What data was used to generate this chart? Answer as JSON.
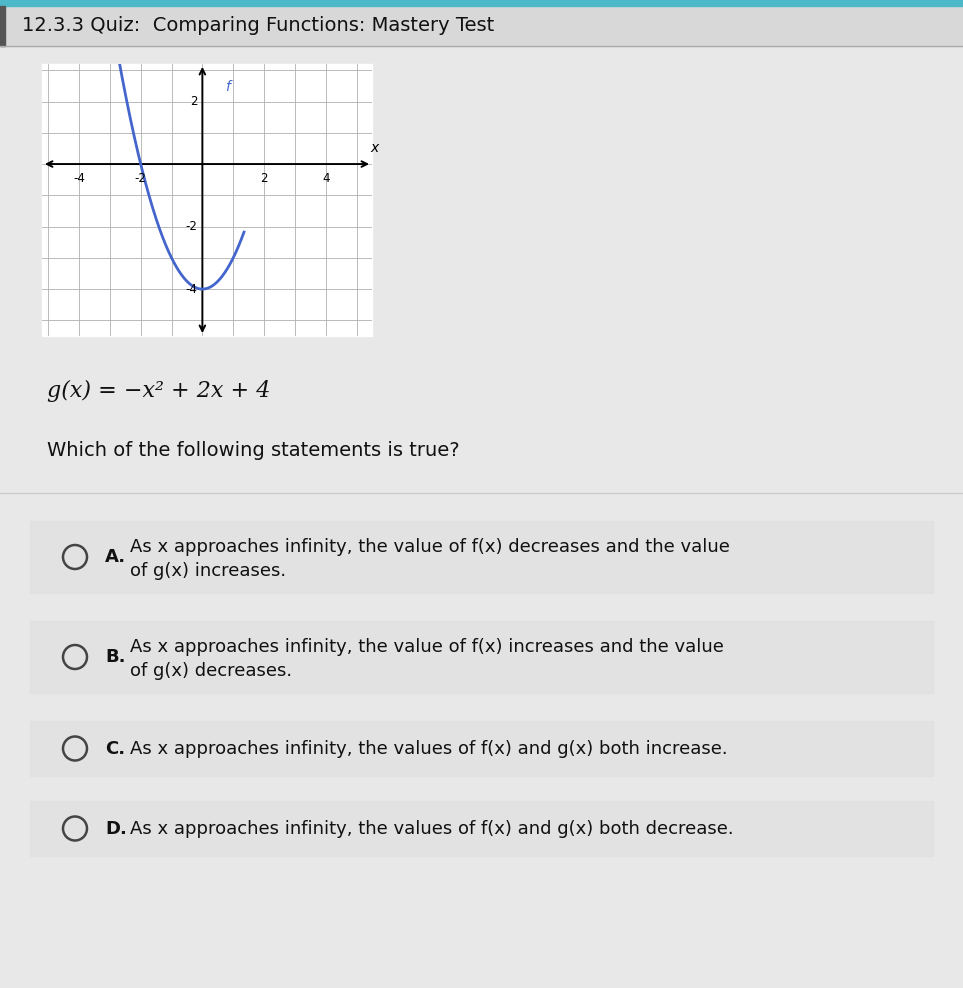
{
  "title": "12.3.3 Quiz:  Comparing Functions: Mastery Test",
  "title_fontsize": 14,
  "bg_color": "#e8e8e8",
  "graph_bg": "#ffffff",
  "graph_grid_color": "#b0b0b0",
  "curve_color": "#4466cc",
  "curve_label": "f",
  "xlim": [
    -5.2,
    5.5
  ],
  "ylim": [
    -5.5,
    3.2
  ],
  "xticks": [
    -4,
    -2,
    2,
    4
  ],
  "yticks": [
    -4,
    -2,
    2
  ],
  "formula_italic": "g(x) = −x² + 2x + 4",
  "question": "Which of the following statements is true?",
  "options": [
    {
      "label": "A.",
      "text1": "As x approaches infinity, the value of f(x) decreases and the value",
      "text2": "of g(x) increases."
    },
    {
      "label": "B.",
      "text1": "As x approaches infinity, the value of f(x) increases and the value",
      "text2": "of g(x) decreases."
    },
    {
      "label": "C.",
      "text1": "As x approaches infinity, the values of f(x) and g(x) both increase.",
      "text2": ""
    },
    {
      "label": "D.",
      "text1": "As x approaches infinity, the values of f(x) and g(x) both decrease.",
      "text2": ""
    }
  ],
  "teal_bar_color": "#4db8c8",
  "title_bar_color": "#d8d8d8",
  "separator_color": "#cccccc",
  "circle_color": "#444444",
  "text_color": "#111111",
  "option_area_bg": "#e0e0e0"
}
